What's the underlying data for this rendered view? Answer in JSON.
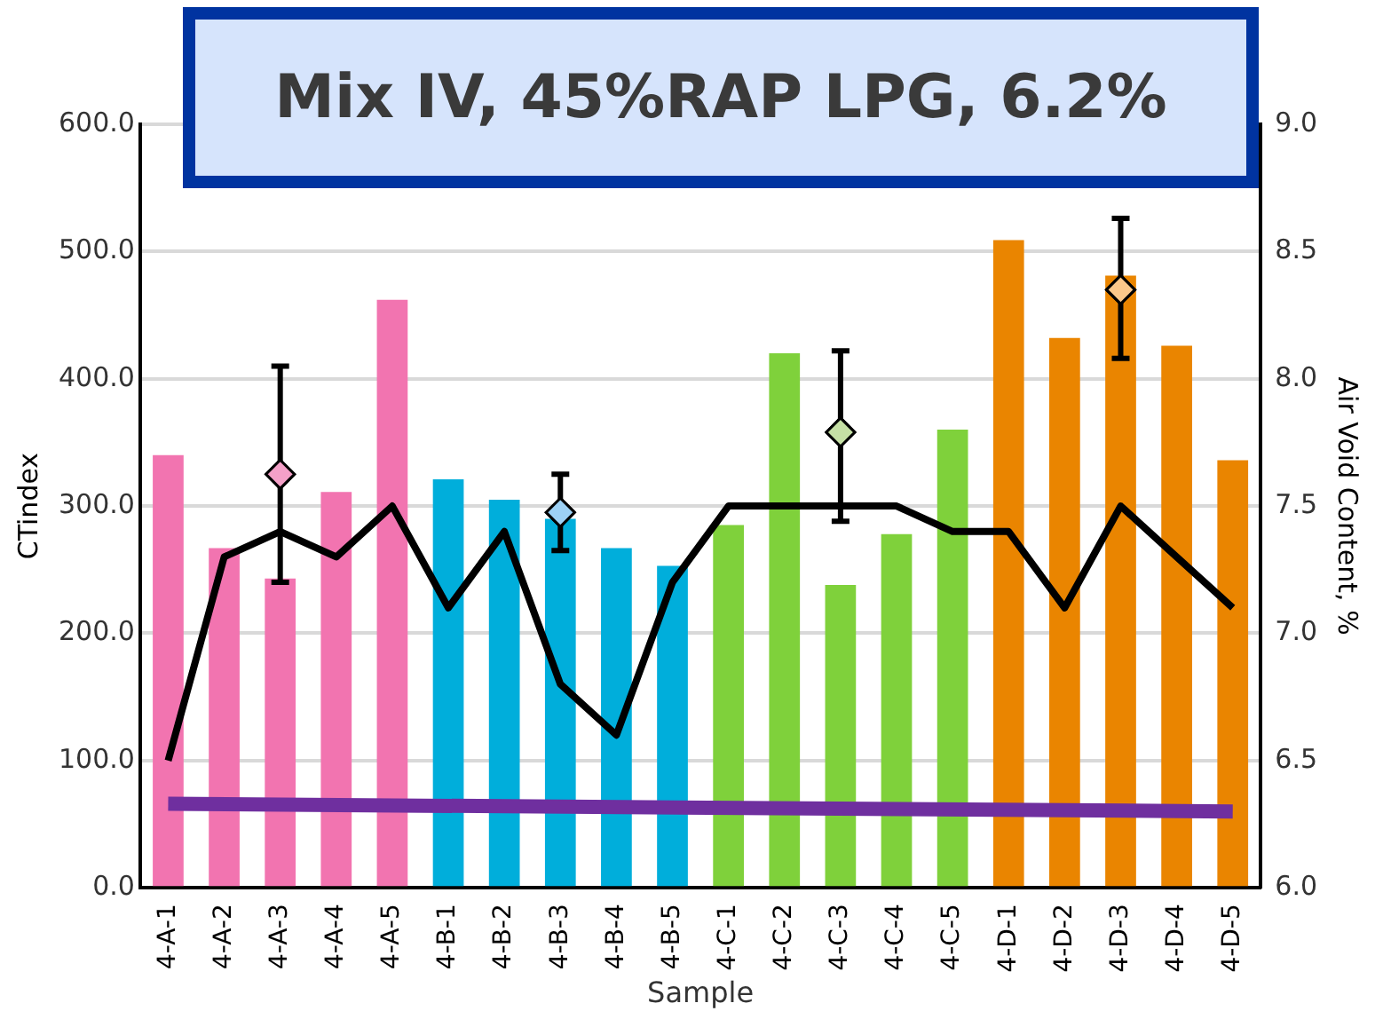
{
  "chart_data": {
    "type": "bar",
    "title": "Mix IV, 45%RAP LPG, 6.2%",
    "xlabel": "Sample",
    "ylabel": "CTindex",
    "y2label": "Air Void Content, %",
    "categories": [
      "4-A-1",
      "4-A-2",
      "4-A-3",
      "4-A-4",
      "4-A-5",
      "4-B-1",
      "4-B-2",
      "4-B-3",
      "4-B-4",
      "4-B-5",
      "4-C-1",
      "4-C-2",
      "4-C-3",
      "4-C-4",
      "4-C-5",
      "4-D-1",
      "4-D-2",
      "4-D-3",
      "4-D-4",
      "4-D-5"
    ],
    "series": [
      {
        "colors": [
          "#f274b0",
          "#f274b0",
          "#f274b0",
          "#f274b0",
          "#f274b0",
          "#00aedb",
          "#00aedb",
          "#00aedb",
          "#00aedb",
          "#00aedb",
          "#7fd13b",
          "#7fd13b",
          "#7fd13b",
          "#7fd13b",
          "#7fd13b",
          "#ea8500",
          "#ea8500",
          "#ea8500",
          "#ea8500",
          "#ea8500"
        ],
        "values": [
          340,
          267,
          243,
          311,
          462,
          321,
          305,
          290,
          267,
          253,
          285,
          420,
          238,
          278,
          360,
          509,
          432,
          481,
          426,
          336
        ]
      },
      {
        "type": "line",
        "color": "#6f2f9f",
        "x": [
          "4-A-1",
          "4-D-5"
        ],
        "values": [
          66,
          60
        ]
      },
      {
        "type": "line",
        "axis": "y2",
        "color": "#000000",
        "values": [
          6.5,
          7.3,
          7.4,
          7.3,
          7.5,
          7.1,
          7.4,
          6.8,
          6.6,
          7.2,
          7.5,
          7.5,
          7.5,
          7.5,
          7.4,
          7.4,
          7.1,
          7.5,
          7.3,
          7.1
        ]
      },
      {
        "type": "scatter",
        "marker": "diamond",
        "x": [
          "4-A-3",
          "4-B-3",
          "4-C-3",
          "4-D-3"
        ],
        "colors": [
          "#f4a0c8",
          "#9dd1f5",
          "#c5e0a5",
          "#fbc88a"
        ],
        "values": [
          325,
          295,
          358,
          470
        ],
        "errors": [
          [
            240,
            410
          ],
          [
            265,
            325
          ],
          [
            288,
            422
          ],
          [
            416,
            526
          ]
        ]
      }
    ],
    "ylim": [
      0,
      600
    ],
    "yticks": [
      {
        "value": 0,
        "label": "0.0"
      },
      {
        "value": 100,
        "label": "100.0"
      },
      {
        "value": 200,
        "label": "200.0"
      },
      {
        "value": 300,
        "label": "300.0"
      },
      {
        "value": 400,
        "label": "400.0"
      },
      {
        "value": 500,
        "label": "500.0"
      },
      {
        "value": 600,
        "label": "600.0"
      }
    ],
    "y2lim": [
      6,
      9
    ],
    "y2ticks": [
      {
        "value": 6,
        "label": "6.0"
      },
      {
        "value": 6.5,
        "label": "6.5"
      },
      {
        "value": 7,
        "label": "7.0"
      },
      {
        "value": 7.5,
        "label": "7.5"
      },
      {
        "value": 8,
        "label": "8.0"
      },
      {
        "value": 8.5,
        "label": "8.5"
      },
      {
        "value": 9,
        "label": "9.0"
      }
    ],
    "grid": "y",
    "legend": false
  }
}
